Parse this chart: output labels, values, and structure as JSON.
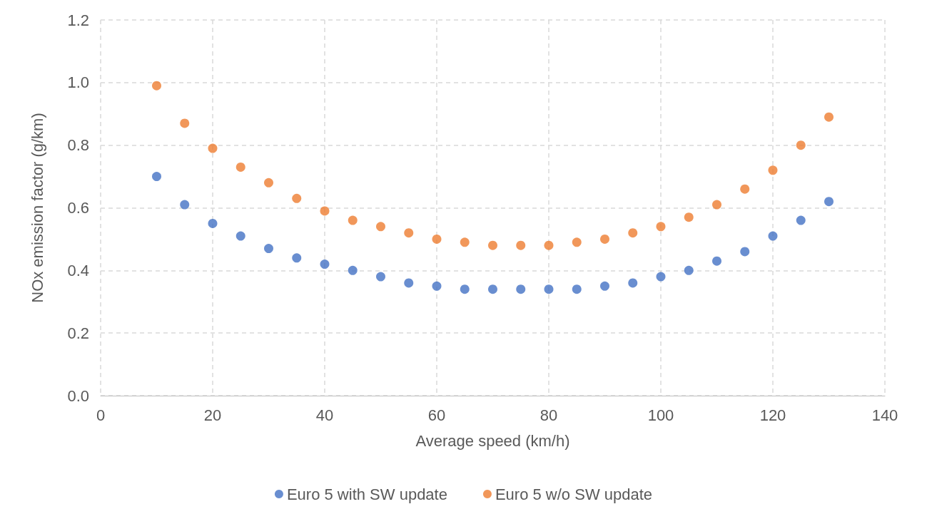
{
  "chart_data": {
    "type": "scatter",
    "xlabel": "Average speed (km/h)",
    "ylabel": "NOx emission factor (g/km)",
    "x": [
      10,
      15,
      20,
      25,
      30,
      35,
      40,
      45,
      50,
      55,
      60,
      65,
      70,
      75,
      80,
      85,
      90,
      95,
      100,
      105,
      110,
      115,
      120,
      125,
      130
    ],
    "series": [
      {
        "name": "Euro 5 with SW update",
        "color": "#4472c4",
        "values": [
          0.7,
          0.61,
          0.55,
          0.51,
          0.47,
          0.44,
          0.42,
          0.4,
          0.38,
          0.36,
          0.35,
          0.34,
          0.34,
          0.34,
          0.34,
          0.34,
          0.35,
          0.36,
          0.38,
          0.4,
          0.43,
          0.46,
          0.51,
          0.56,
          0.62
        ]
      },
      {
        "name": "Euro 5 w/o SW update",
        "color": "#ed7d31",
        "values": [
          0.99,
          0.87,
          0.79,
          0.73,
          0.68,
          0.63,
          0.59,
          0.56,
          0.54,
          0.52,
          0.5,
          0.49,
          0.48,
          0.48,
          0.48,
          0.49,
          0.5,
          0.52,
          0.54,
          0.57,
          0.61,
          0.66,
          0.72,
          0.8,
          0.89
        ]
      }
    ],
    "xlim": [
      0,
      140
    ],
    "xticks": [
      0,
      20,
      40,
      60,
      80,
      100,
      120,
      140
    ],
    "ylim": [
      0,
      1.2
    ],
    "yticks": [
      {
        "value": 0,
        "label": "0.0"
      },
      {
        "value": 0.2,
        "label": "0.2"
      },
      {
        "value": 0.4,
        "label": "0.4"
      },
      {
        "value": 0.6,
        "label": "0.6"
      },
      {
        "value": 0.8,
        "label": "0.8"
      },
      {
        "value": 1,
        "label": "1.0"
      },
      {
        "value": 1.2,
        "label": "1.2"
      }
    ],
    "grid": true,
    "legend": "bottom",
    "marker": "circle"
  }
}
